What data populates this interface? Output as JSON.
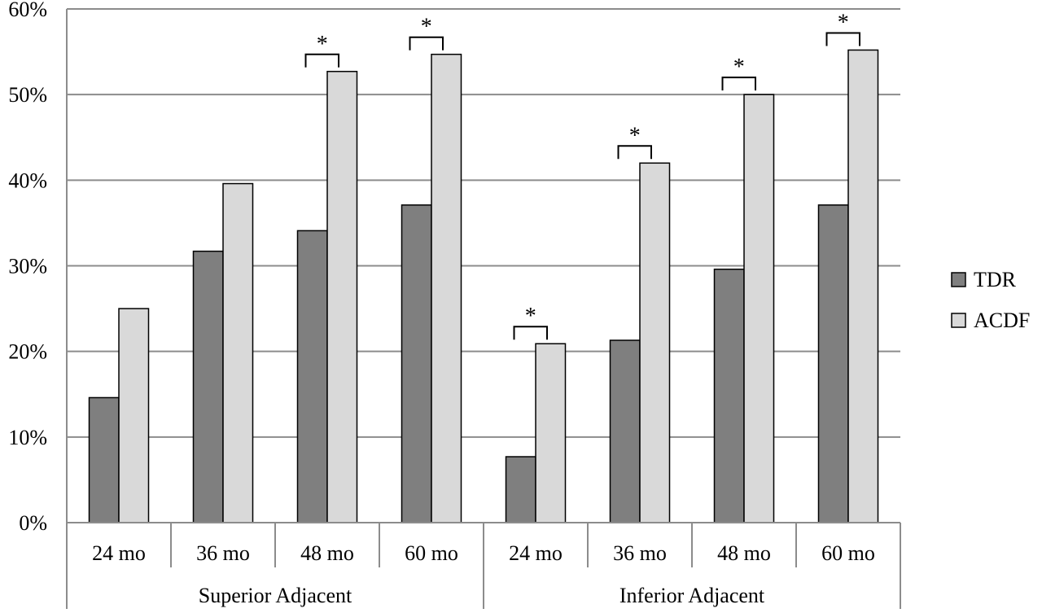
{
  "chart_data": {
    "type": "bar",
    "title": "",
    "xlabel": "",
    "ylabel": "",
    "ylim": [
      0,
      60
    ],
    "yticks": [
      "0%",
      "10%",
      "20%",
      "30%",
      "40%",
      "50%",
      "60%"
    ],
    "grid": true,
    "legend_position": "right",
    "groups": [
      {
        "label": "Superior Adjacent",
        "categories": [
          "24 mo",
          "36 mo",
          "48 mo",
          "60 mo"
        ]
      },
      {
        "label": "Inferior Adjacent",
        "categories": [
          "24 mo",
          "36 mo",
          "48 mo",
          "60 mo"
        ]
      }
    ],
    "series": [
      {
        "name": "TDR",
        "color": "#7f7f7f",
        "values": [
          14.6,
          31.7,
          34.1,
          37.1,
          7.7,
          21.3,
          29.6,
          37.1
        ]
      },
      {
        "name": "ACDF",
        "color": "#d9d9d9",
        "values": [
          25.0,
          39.6,
          52.7,
          54.7,
          20.9,
          42.0,
          50.0,
          55.2
        ]
      }
    ],
    "significance_marker": "*",
    "significant": [
      false,
      false,
      true,
      true,
      true,
      true,
      true,
      true
    ]
  }
}
